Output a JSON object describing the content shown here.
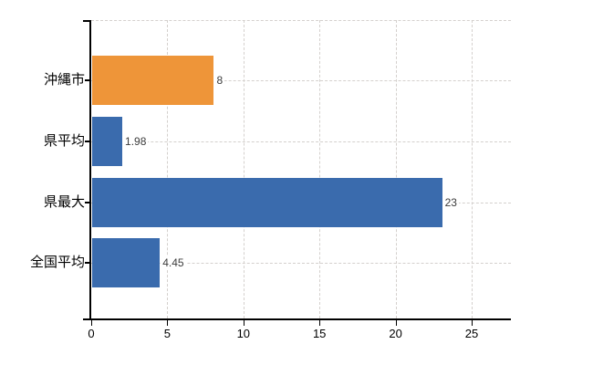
{
  "page": {
    "background": "#ffffff"
  },
  "chart_data": {
    "type": "bar",
    "orientation": "horizontal",
    "title": "",
    "xlabel": "",
    "ylabel": "",
    "categories": [
      "沖縄市",
      "県平均",
      "県最大",
      "全国平均"
    ],
    "values": [
      8,
      1.98,
      23,
      4.45
    ],
    "value_labels": [
      "8",
      "1.98",
      "23",
      "4.45"
    ],
    "bar_colors": [
      "#ee9539",
      "#3a6bad",
      "#3a6bad",
      "#3a6bad"
    ],
    "x_tick_values": [
      0,
      5,
      10,
      15,
      20,
      25
    ],
    "x_tick_labels": [
      "0",
      "5",
      "10",
      "15",
      "20",
      "25"
    ],
    "xlim": [
      0,
      27.6
    ],
    "grid": {
      "style": "dashed",
      "color": "#d4d0cd",
      "vertical_at_ticks": true,
      "horizontal_at_categories": true,
      "top_edge_line": true
    },
    "legend": "none",
    "colors": {
      "axis": "#000000",
      "value_label": "#3c3c3c",
      "category_label": "#000000",
      "tick_label": "#000000"
    }
  }
}
